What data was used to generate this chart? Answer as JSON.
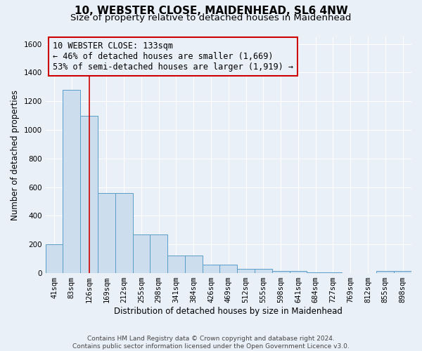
{
  "title1": "10, WEBSTER CLOSE, MAIDENHEAD, SL6 4NW",
  "title2": "Size of property relative to detached houses in Maidenhead",
  "xlabel": "Distribution of detached houses by size in Maidenhead",
  "ylabel": "Number of detached properties",
  "footnote": "Contains HM Land Registry data © Crown copyright and database right 2024.\nContains public sector information licensed under the Open Government Licence v3.0.",
  "bar_labels": [
    "41sqm",
    "83sqm",
    "126sqm",
    "169sqm",
    "212sqm",
    "255sqm",
    "298sqm",
    "341sqm",
    "384sqm",
    "426sqm",
    "469sqm",
    "512sqm",
    "555sqm",
    "598sqm",
    "641sqm",
    "684sqm",
    "727sqm",
    "769sqm",
    "812sqm",
    "855sqm",
    "898sqm"
  ],
  "bar_values": [
    200,
    1280,
    1100,
    560,
    560,
    270,
    270,
    125,
    125,
    60,
    60,
    30,
    30,
    15,
    15,
    5,
    5,
    0,
    0,
    15,
    15
  ],
  "bar_color": "#ccdded",
  "bar_edge_color": "#5a9dc8",
  "vline_x_index": 2,
  "vline_color": "#cc0000",
  "annotation_text": "10 WEBSTER CLOSE: 133sqm\n← 46% of detached houses are smaller (1,669)\n53% of semi-detached houses are larger (1,919) →",
  "annotation_box_color": "#cc0000",
  "ylim": [
    0,
    1650
  ],
  "yticks": [
    0,
    200,
    400,
    600,
    800,
    1000,
    1200,
    1400,
    1600
  ],
  "bg_color": "#eaf0f8",
  "grid_color": "#ffffff",
  "title1_fontsize": 11,
  "title2_fontsize": 9.5,
  "annotation_fontsize": 8.5,
  "ylabel_fontsize": 8.5,
  "xlabel_fontsize": 8.5,
  "tick_fontsize": 7.5,
  "footnote_fontsize": 6.5,
  "footnote_color": "#444444"
}
